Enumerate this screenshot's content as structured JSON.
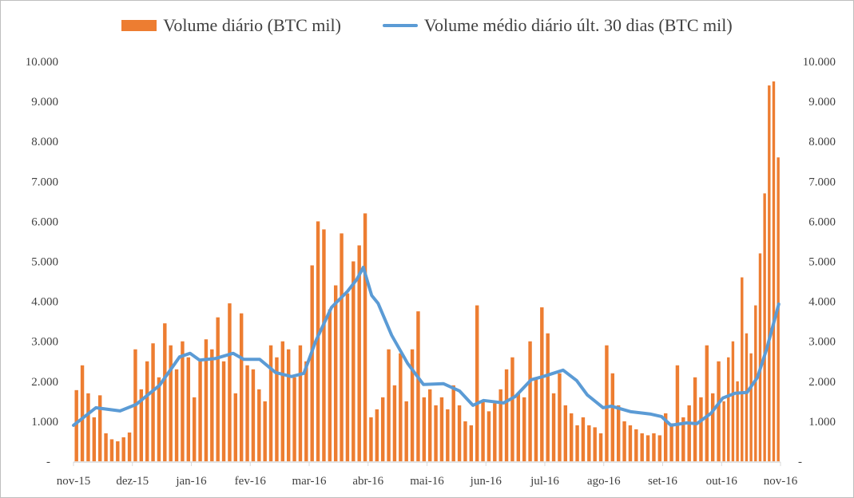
{
  "chart_data": {
    "type": "bar+line",
    "title": "",
    "legend_position": "top",
    "legend": [
      "Volume diário (BTC mil)",
      "Volume médio diário últ. 30 dias (BTC mil)"
    ],
    "colors": {
      "bars": "#ED7D31",
      "line": "#5B9BD5",
      "axis": "#d9d9d9"
    },
    "x_ticks": [
      "nov-15",
      "dez-15",
      "jan-16",
      "fev-16",
      "mar-16",
      "abr-16",
      "mai-16",
      "jun-16",
      "jul-16",
      "ago-16",
      "set-16",
      "out-16",
      "nov-16"
    ],
    "y_ticks": [
      "-",
      "1.000",
      "2.000",
      "3.000",
      "4.000",
      "5.000",
      "6.000",
      "7.000",
      "8.000",
      "9.000",
      "10.000"
    ],
    "ylim": [
      0,
      10000
    ],
    "grid": false,
    "series": [
      {
        "name": "Volume diário (BTC mil)",
        "kind": "bar",
        "values_by_month": [
          [
            1780,
            2400,
            1700,
            1100,
            1650,
            700,
            550,
            500,
            600,
            720
          ],
          [
            2800,
            1800,
            2500,
            2950,
            2100,
            3450,
            2900,
            2300,
            3000,
            2600
          ],
          [
            1600,
            2500,
            3050,
            2800,
            3600,
            2500,
            3950,
            1700,
            3700,
            2400
          ],
          [
            2300,
            1800,
            1500,
            2900,
            2600,
            3000,
            2800,
            2100,
            2900,
            2500
          ],
          [
            4900,
            6000,
            5800,
            3800,
            4400,
            5700,
            4200,
            5000,
            5400,
            6200
          ],
          [
            1100,
            1300,
            1600,
            2800,
            1900,
            2700,
            1500,
            2800,
            3750,
            1600
          ],
          [
            1800,
            1400,
            1600,
            1300,
            1900,
            1400,
            1000,
            900,
            3900,
            1500
          ],
          [
            1250,
            1450,
            1800,
            2300,
            2600,
            1700,
            1600,
            3000,
            2100,
            3850
          ],
          [
            3200,
            1700,
            2200,
            1400,
            1200,
            900,
            1100,
            900,
            850,
            700
          ],
          [
            2900,
            2200,
            1400,
            1000,
            900,
            800,
            700,
            650,
            700,
            650
          ],
          [
            1200,
            950,
            2400,
            1100,
            1400,
            2100,
            1600,
            2900,
            1700,
            2500
          ],
          [
            1500,
            2600,
            3000,
            2000,
            4600,
            3200,
            2700,
            3900,
            5200,
            6700,
            9400,
            9500,
            7600
          ]
        ]
      },
      {
        "name": "Volume médio diário últ. 30 dias (BTC mil)",
        "kind": "line",
        "points_month_value": [
          [
            0,
            900
          ],
          [
            0.38,
            1340
          ],
          [
            0.79,
            1260
          ],
          [
            1.06,
            1420
          ],
          [
            1.46,
            1900
          ],
          [
            1.8,
            2610
          ],
          [
            1.98,
            2700
          ],
          [
            2.14,
            2530
          ],
          [
            2.41,
            2570
          ],
          [
            2.71,
            2700
          ],
          [
            2.89,
            2550
          ],
          [
            3.16,
            2550
          ],
          [
            3.43,
            2220
          ],
          [
            3.7,
            2120
          ],
          [
            3.91,
            2200
          ],
          [
            4.11,
            3000
          ],
          [
            4.38,
            3850
          ],
          [
            4.65,
            4250
          ],
          [
            4.81,
            4550
          ],
          [
            4.92,
            4850
          ],
          [
            5.06,
            4150
          ],
          [
            5.17,
            3950
          ],
          [
            5.4,
            3150
          ],
          [
            5.67,
            2450
          ],
          [
            5.94,
            1920
          ],
          [
            6.28,
            1940
          ],
          [
            6.55,
            1760
          ],
          [
            6.78,
            1400
          ],
          [
            6.96,
            1520
          ],
          [
            7.3,
            1460
          ],
          [
            7.5,
            1620
          ],
          [
            7.77,
            2040
          ],
          [
            7.97,
            2120
          ],
          [
            8.31,
            2280
          ],
          [
            8.54,
            2020
          ],
          [
            8.72,
            1660
          ],
          [
            8.99,
            1340
          ],
          [
            9.13,
            1380
          ],
          [
            9.46,
            1240
          ],
          [
            9.8,
            1180
          ],
          [
            9.98,
            1120
          ],
          [
            10.14,
            900
          ],
          [
            10.41,
            960
          ],
          [
            10.58,
            940
          ],
          [
            10.82,
            1200
          ],
          [
            11.02,
            1580
          ],
          [
            11.23,
            1700
          ],
          [
            11.43,
            1720
          ],
          [
            11.61,
            2100
          ],
          [
            11.77,
            2830
          ],
          [
            11.97,
            3930
          ]
        ]
      }
    ]
  }
}
